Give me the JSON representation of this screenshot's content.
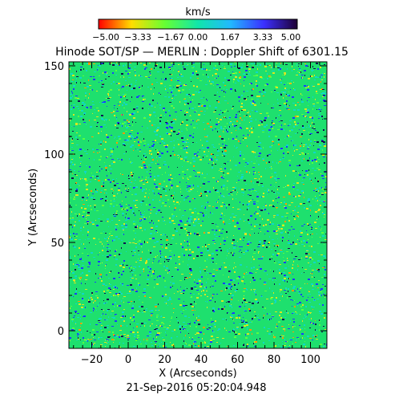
{
  "colorbar": {
    "unit_label": "km/s",
    "tick_labels": [
      "−5.00",
      "−3.33",
      "−1.67",
      "0.00",
      "1.67",
      "3.33",
      "5.00"
    ],
    "colors": [
      "#ff0000",
      "#ffdd00",
      "#66ff33",
      "#11e6aa",
      "#22b8ff",
      "#3b2fff",
      "#1e0033"
    ]
  },
  "title": "Hinode SOT/SP — MERLIN : Doppler Shift of 6301.15",
  "axes": {
    "x_label": "X (Arcseconds)",
    "y_label": "Y (Arcseconds)",
    "x_ticks": [
      "−20",
      "0",
      "20",
      "40",
      "60",
      "80",
      "100"
    ],
    "y_ticks": [
      "150",
      "100",
      "50",
      "0"
    ]
  },
  "timestamp": "21-Sep-2016 05:20:04.948",
  "image": {
    "colors": {
      "base": "#1ee06e",
      "cyan": "#10d8c8",
      "blue": "#1a3cff",
      "navy": "#101050",
      "yellow": "#d8e820",
      "orange": "#ff9a00"
    }
  }
}
